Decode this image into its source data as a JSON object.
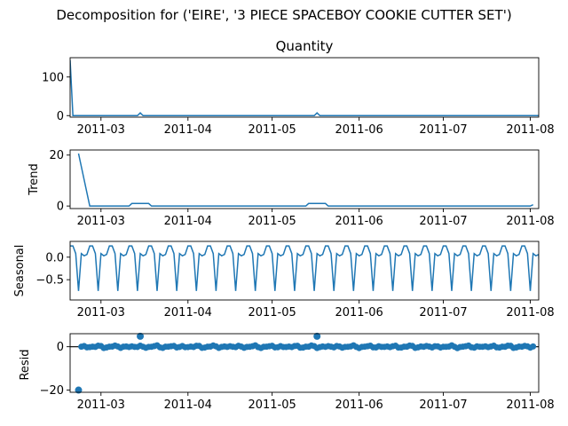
{
  "figure": {
    "suptitle": "Decomposition for ('EIRE', '3 PIECE SPACEBOY COOKIE CUTTER SET')",
    "line_color": "#1f77b4",
    "x_tick_labels": [
      "2011-03",
      "2011-04",
      "2011-05",
      "2011-06",
      "2011-07",
      "2011-08"
    ],
    "x_tick_values": [
      "2011-03-01",
      "2011-04-01",
      "2011-05-01",
      "2011-06-01",
      "2011-07-01",
      "2011-08-01"
    ],
    "xlim": [
      "2011-02-18",
      "2011-08-04"
    ]
  },
  "chart_data": [
    {
      "type": "line",
      "title": "Quantity",
      "ylabel": "",
      "ylim": [
        -4,
        150
      ],
      "y_ticks": [
        0,
        100
      ],
      "y_tick_labels": [
        "0",
        "100"
      ],
      "grid": false,
      "series": [
        {
          "points": [
            [
              "2011-02-18",
              144
            ],
            [
              "2011-02-19",
              0
            ],
            [
              "2011-03-14",
              0
            ],
            [
              "2011-03-15",
              7
            ],
            [
              "2011-03-16",
              0
            ],
            [
              "2011-05-16",
              0
            ],
            [
              "2011-05-17",
              7
            ],
            [
              "2011-05-18",
              0
            ],
            [
              "2011-08-04",
              0
            ]
          ]
        }
      ]
    },
    {
      "type": "line",
      "title": "",
      "ylabel": "Trend",
      "ylim": [
        -1,
        22
      ],
      "y_ticks": [
        0,
        20
      ],
      "y_tick_labels": [
        "0",
        "20"
      ],
      "grid": false,
      "series": [
        {
          "points": [
            [
              "2011-02-21",
              20.6
            ],
            [
              "2011-02-25",
              0
            ],
            [
              "2011-03-11",
              0
            ],
            [
              "2011-03-12",
              1
            ],
            [
              "2011-03-18",
              1
            ],
            [
              "2011-03-19",
              0
            ],
            [
              "2011-05-13",
              0
            ],
            [
              "2011-05-14",
              1
            ],
            [
              "2011-05-20",
              1
            ],
            [
              "2011-05-21",
              0
            ],
            [
              "2011-08-01",
              0
            ],
            [
              "2011-08-02",
              0.5
            ]
          ]
        }
      ]
    },
    {
      "type": "line",
      "title": "",
      "ylabel": "Seasonal",
      "ylim": [
        -0.95,
        0.35
      ],
      "y_ticks": [
        0.0,
        -0.5
      ],
      "y_tick_labels": [
        "0.0",
        "−0.5"
      ],
      "grid": false,
      "seasonal_pattern": [
        0.25,
        0.25,
        0.08,
        -0.75,
        0.08,
        0.03,
        0.06
      ],
      "pattern_start": "2011-02-18",
      "pattern_end": "2011-08-04"
    },
    {
      "type": "scatter",
      "title": "",
      "ylabel": "Resid",
      "ylim": [
        -21,
        6
      ],
      "y_ticks": [
        0,
        -20
      ],
      "y_tick_labels": [
        "0",
        "−20"
      ],
      "grid": false,
      "zero_line": true,
      "special_points": [
        [
          "2011-02-21",
          -20
        ],
        [
          "2011-03-15",
          4.8
        ],
        [
          "2011-05-17",
          4.8
        ]
      ],
      "noise_start": "2011-02-22",
      "noise_end": "2011-08-02"
    }
  ]
}
